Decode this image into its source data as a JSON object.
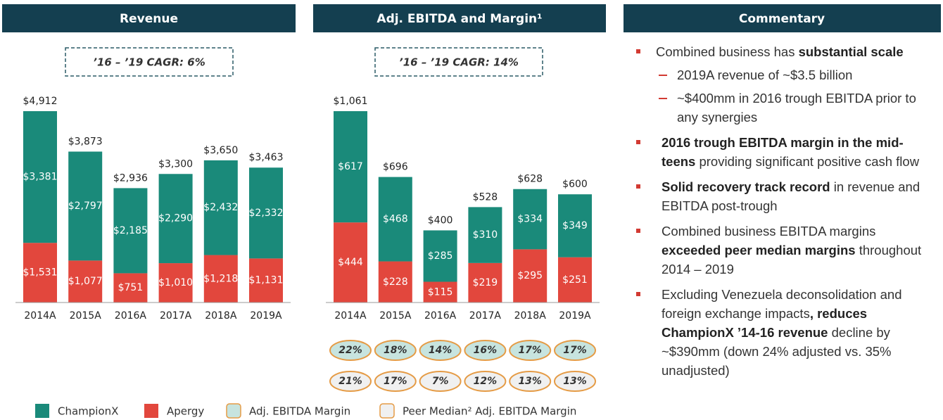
{
  "chart_data": [
    {
      "type": "stacked_bar",
      "title": "Revenue",
      "annotation": "’16 – ’19 CAGR: 6%",
      "categories": [
        "2014A",
        "2015A",
        "2016A",
        "2017A",
        "2018A",
        "2019A"
      ],
      "series": [
        {
          "name": "ChampionX",
          "color": "#1a8a7a",
          "values": [
            3381,
            2797,
            2185,
            2290,
            2432,
            2332
          ],
          "value_labels": [
            "$3,381",
            "$2,797",
            "$2,185",
            "$2,290",
            "$2,432",
            "$2,332"
          ]
        },
        {
          "name": "Apergy",
          "color": "#e2473d",
          "values": [
            1531,
            1077,
            751,
            1010,
            1218,
            1131
          ],
          "value_labels": [
            "$1,531",
            "$1,077",
            "$751",
            "$1,010",
            "$1,218",
            "$1,131"
          ]
        }
      ],
      "totals": [
        4912,
        3873,
        2936,
        3300,
        3650,
        3463
      ],
      "total_labels": [
        "$4,912",
        "$3,873",
        "$2,936",
        "$3,300",
        "$3,650",
        "$3,463"
      ]
    },
    {
      "type": "stacked_bar",
      "title": "Adj. EBITDA and Margin¹",
      "annotation": "’16 – ’19 CAGR: 14%",
      "categories": [
        "2014A",
        "2015A",
        "2016A",
        "2017A",
        "2018A",
        "2019A"
      ],
      "series": [
        {
          "name": "ChampionX",
          "color": "#1a8a7a",
          "values": [
            617,
            468,
            285,
            310,
            334,
            349
          ],
          "value_labels": [
            "$617",
            "$468",
            "$285",
            "$310",
            "$334",
            "$349"
          ]
        },
        {
          "name": "Apergy",
          "color": "#e2473d",
          "values": [
            444,
            228,
            115,
            219,
            295,
            251
          ],
          "value_labels": [
            "$444",
            "$228",
            "$115",
            "$219",
            "$295",
            "$251"
          ]
        }
      ],
      "totals": [
        1061,
        696,
        400,
        528,
        628,
        600
      ],
      "total_labels": [
        "$1,061",
        "$696",
        "$400",
        "$528",
        "$628",
        "$600"
      ],
      "margin_rows": [
        {
          "name": "Adj. EBITDA Margin",
          "color": "#c7e4df",
          "values": [
            22,
            18,
            14,
            16,
            17,
            17
          ],
          "value_labels": [
            "22%",
            "18%",
            "14%",
            "16%",
            "17%",
            "17%"
          ]
        },
        {
          "name": "Peer Median² Adj. EBITDA Margin",
          "color": "#f0f0f0",
          "values": [
            21,
            17,
            7,
            12,
            13,
            13
          ],
          "value_labels": [
            "21%",
            "17%",
            "7%",
            "12%",
            "13%",
            "13%"
          ]
        }
      ]
    }
  ],
  "commentary": {
    "title": "Commentary",
    "items": [
      {
        "parts": [
          {
            "text": "Combined business has "
          },
          {
            "text": "substantial scale",
            "bold": true
          }
        ],
        "sub": [
          {
            "parts": [
              {
                "text": "2019A revenue of ~$3.5 billion"
              }
            ]
          },
          {
            "parts": [
              {
                "text": "~$400mm in 2016 trough EBITDA prior to any synergies"
              }
            ]
          }
        ]
      },
      {
        "parts": [
          {
            "text": "2016 trough EBITDA margin in the mid-teens",
            "bold": true
          },
          {
            "text": " providing significant positive cash flow"
          }
        ]
      },
      {
        "parts": [
          {
            "text": "Solid recovery track record",
            "bold": true
          },
          {
            "text": " in revenue and EBITDA post-trough"
          }
        ]
      },
      {
        "parts": [
          {
            "text": "Combined business EBITDA margins "
          },
          {
            "text": "exceeded peer median margins",
            "bold": true
          },
          {
            "text": " throughout 2014 – 2019"
          }
        ]
      },
      {
        "parts": [
          {
            "text": "Excluding Venezuela deconsolidation and foreign exchange impacts"
          },
          {
            "text": ", reduces ChampionX ’14-16 revenue",
            "bold": true
          },
          {
            "text": " decline by ~$390mm (down 24% adjusted vs. 35% unadjusted)"
          }
        ]
      }
    ]
  }
}
